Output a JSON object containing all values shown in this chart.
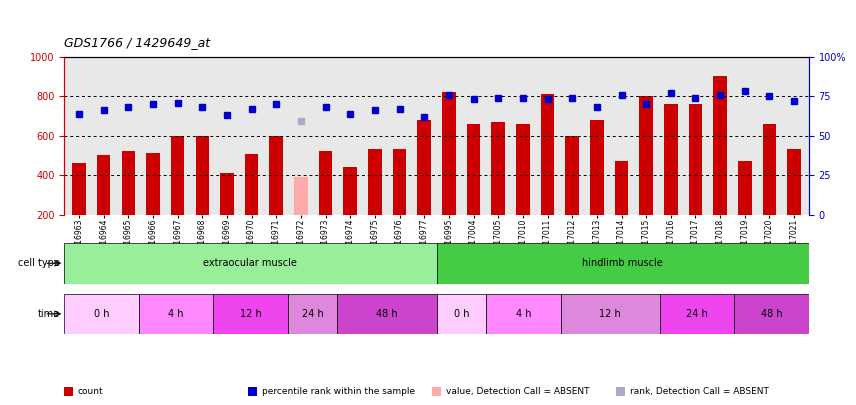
{
  "title": "GDS1766 / 1429649_at",
  "samples": [
    "GSM16963",
    "GSM16964",
    "GSM16965",
    "GSM16966",
    "GSM16967",
    "GSM16968",
    "GSM16969",
    "GSM16970",
    "GSM16971",
    "GSM16972",
    "GSM16973",
    "GSM16974",
    "GSM16975",
    "GSM16976",
    "GSM16977",
    "GSM16995",
    "GSM17004",
    "GSM17005",
    "GSM17010",
    "GSM17011",
    "GSM17012",
    "GSM17013",
    "GSM17014",
    "GSM17015",
    "GSM17016",
    "GSM17017",
    "GSM17018",
    "GSM17019",
    "GSM17020",
    "GSM17021"
  ],
  "bar_values": [
    460,
    500,
    520,
    510,
    600,
    600,
    410,
    505,
    600,
    390,
    520,
    440,
    530,
    530,
    680,
    820,
    660,
    670,
    660,
    810,
    600,
    680,
    470,
    800,
    760,
    760,
    900,
    470,
    660,
    530
  ],
  "bar_absent": [
    false,
    false,
    false,
    false,
    false,
    false,
    false,
    false,
    false,
    true,
    false,
    false,
    false,
    false,
    false,
    false,
    false,
    false,
    false,
    false,
    false,
    false,
    false,
    false,
    false,
    false,
    false,
    false,
    false,
    false
  ],
  "dot_values_pct": [
    64,
    66,
    68,
    70,
    71,
    68,
    63,
    67,
    70,
    59,
    68,
    64,
    66,
    67,
    62,
    76,
    73,
    74,
    74,
    73,
    74,
    68,
    76,
    70,
    77,
    74,
    76,
    78,
    75,
    72
  ],
  "dot_absent": [
    false,
    false,
    false,
    false,
    false,
    false,
    false,
    false,
    false,
    true,
    false,
    false,
    false,
    false,
    false,
    false,
    false,
    false,
    false,
    false,
    false,
    false,
    false,
    false,
    false,
    false,
    false,
    false,
    false,
    false
  ],
  "ylim_left": [
    200,
    1000
  ],
  "ylim_right": [
    0,
    100
  ],
  "yticks_left": [
    200,
    400,
    600,
    800,
    1000
  ],
  "yticks_right": [
    0,
    25,
    50,
    75,
    100
  ],
  "yticklabels_right": [
    "0",
    "25",
    "50",
    "75",
    "100%"
  ],
  "grid_values_pct": [
    25,
    50,
    75
  ],
  "bar_color": "#cc0000",
  "bar_absent_color": "#ffaaaa",
  "dot_color": "#0000cc",
  "dot_absent_color": "#aaaacc",
  "cell_type_data": [
    {
      "label": "extraocular muscle",
      "start": 0,
      "end": 15,
      "color": "#99ee99"
    },
    {
      "label": "hindlimb muscle",
      "start": 15,
      "end": 30,
      "color": "#44cc44"
    }
  ],
  "time_data": [
    {
      "label": "0 h",
      "start": 0,
      "end": 3,
      "color": "#ffccff"
    },
    {
      "label": "4 h",
      "start": 3,
      "end": 6,
      "color": "#ff88ff"
    },
    {
      "label": "12 h",
      "start": 6,
      "end": 9,
      "color": "#ee44ee"
    },
    {
      "label": "24 h",
      "start": 9,
      "end": 11,
      "color": "#dd88dd"
    },
    {
      "label": "48 h",
      "start": 11,
      "end": 15,
      "color": "#cc44cc"
    },
    {
      "label": "0 h",
      "start": 15,
      "end": 17,
      "color": "#ffccff"
    },
    {
      "label": "4 h",
      "start": 17,
      "end": 20,
      "color": "#ff88ff"
    },
    {
      "label": "12 h",
      "start": 20,
      "end": 24,
      "color": "#dd88dd"
    },
    {
      "label": "24 h",
      "start": 24,
      "end": 27,
      "color": "#ee44ee"
    },
    {
      "label": "48 h",
      "start": 27,
      "end": 30,
      "color": "#cc44cc"
    }
  ],
  "legend_items": [
    {
      "label": "count",
      "color": "#cc0000"
    },
    {
      "label": "percentile rank within the sample",
      "color": "#0000cc"
    },
    {
      "label": "value, Detection Call = ABSENT",
      "color": "#ffaaaa"
    },
    {
      "label": "rank, Detection Call = ABSENT",
      "color": "#aaaacc"
    }
  ],
  "cell_type_label": "cell type",
  "time_label": "time",
  "bg_color": "#dddddd",
  "plot_bg": "#e8e8e8"
}
